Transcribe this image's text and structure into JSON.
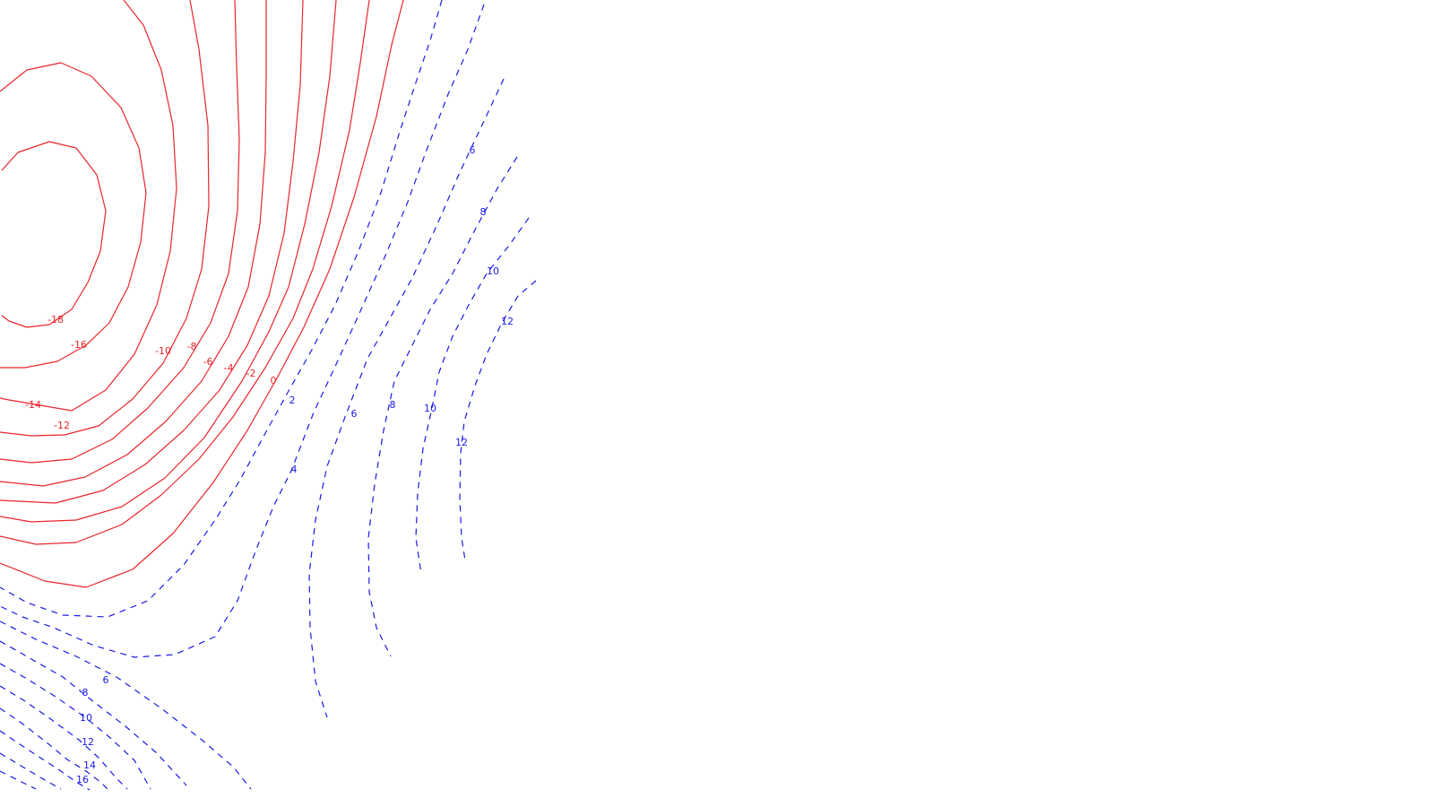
{
  "chart_data": {
    "type": "contour",
    "negative_color": "#e8262b",
    "positive_color": "#1a1ae6",
    "negative_style": "solid",
    "positive_style": "dashed",
    "contour_levels": [
      -18,
      -16,
      -14,
      -12,
      -10,
      -8,
      -6,
      -4,
      -2,
      0,
      2,
      4,
      6,
      8,
      10,
      12,
      14,
      16
    ],
    "labels": [
      {
        "text": "-18",
        "level": -18
      },
      {
        "text": "-16",
        "level": -16
      },
      {
        "text": "-14",
        "level": -14
      },
      {
        "text": "-12",
        "level": -12
      },
      {
        "text": "-10",
        "level": -10
      },
      {
        "text": "-8",
        "level": -8
      },
      {
        "text": "-6",
        "level": -6
      },
      {
        "text": "-4",
        "level": -4
      },
      {
        "text": "-2",
        "level": -2
      },
      {
        "text": "0",
        "level": 0
      },
      {
        "text": "2",
        "level": 2
      },
      {
        "text": "4",
        "level": 4
      },
      {
        "text": "6",
        "level": 6
      },
      {
        "text": "8",
        "level": 8
      },
      {
        "text": "10",
        "level": 10
      },
      {
        "text": "12",
        "level": 12
      },
      {
        "text": "6",
        "level": 6
      },
      {
        "text": "8",
        "level": 8
      },
      {
        "text": "10",
        "level": 10
      },
      {
        "text": "12",
        "level": 12
      },
      {
        "text": "6",
        "level": 6
      },
      {
        "text": "8",
        "level": 8
      },
      {
        "text": "10",
        "level": 10
      },
      {
        "text": "12",
        "level": 12
      },
      {
        "text": "14",
        "level": 14
      },
      {
        "text": "16",
        "level": 16
      }
    ]
  }
}
